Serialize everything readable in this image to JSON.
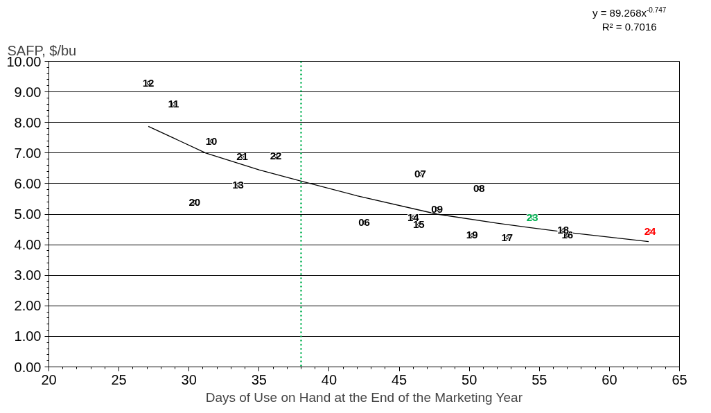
{
  "chart_data": {
    "type": "scatter",
    "xlabel": "Days of Use on Hand at the End of the Marketing Year",
    "ylabel": "SAFP, $/bu",
    "annotations": [
      "y = 89.268x$^{-0.747}$",
      "R² = 0.7016",
      {
        "text": "06",
        "x": 42.5,
        "y": 4.72
      },
      {
        "text": "07",
        "x": 46.5,
        "y": 6.31
      },
      {
        "text": "08",
        "x": 50.7,
        "y": 5.85
      },
      {
        "text": "09",
        "x": 47.7,
        "y": 5.16
      },
      {
        "text": "10",
        "x": 31.6,
        "y": 7.39
      },
      {
        "text": "11",
        "x": 28.9,
        "y": 8.6
      },
      {
        "text": "12",
        "x": 27.1,
        "y": 9.29
      },
      {
        "text": "13",
        "x": 33.5,
        "y": 5.96
      },
      {
        "text": "14",
        "x": 46.0,
        "y": 4.89
      },
      {
        "text": "15",
        "x": 46.4,
        "y": 4.66
      },
      {
        "text": "16",
        "x": 57.0,
        "y": 4.31
      },
      {
        "text": "17",
        "x": 52.7,
        "y": 4.24
      },
      {
        "text": "18",
        "x": 56.7,
        "y": 4.47
      },
      {
        "text": "19",
        "x": 50.2,
        "y": 4.31
      },
      {
        "text": "20",
        "x": 30.4,
        "y": 5.39
      },
      {
        "text": "21",
        "x": 33.8,
        "y": 6.88
      },
      {
        "text": "22",
        "x": 36.2,
        "y": 6.9
      },
      {
        "text": "23",
        "x": 54.5,
        "y": 4.89
      },
      {
        "text": "24",
        "x": 62.9,
        "y": 4.43
      }
    ],
    "xlim": [
      20,
      65
    ],
    "xticks": [
      20,
      25,
      30,
      35,
      40,
      45,
      50,
      55,
      60,
      65
    ],
    "ylim": [
      0,
      10
    ],
    "yticks": [
      {
        "value": 0,
        "label": "0.00"
      },
      {
        "value": 1,
        "label": "1.00"
      },
      {
        "value": 2,
        "label": "2.00"
      },
      {
        "value": 3,
        "label": "3.00"
      },
      {
        "value": 4,
        "label": "4.00"
      },
      {
        "value": 5,
        "label": "5.00"
      },
      {
        "value": 6,
        "label": "6.00"
      },
      {
        "value": 7,
        "label": "7.00"
      },
      {
        "value": 8,
        "label": "8.00"
      },
      {
        "value": 9,
        "label": "9.00"
      },
      {
        "value": 10,
        "label": "10.00"
      }
    ],
    "grid": "y",
    "legend": false,
    "marker": "diamond",
    "ref_lines": [
      {
        "axis": "x",
        "value": 38,
        "label": null,
        "color": "#00b050",
        "line_style": "dotted"
      }
    ],
    "series": [
      {
        "type": "scatter",
        "color": "#000000",
        "x": [
          42.5,
          46.5,
          50.7,
          47.7,
          31.6,
          28.9,
          27.1,
          33.5,
          46.0,
          46.4,
          57.0,
          52.7,
          56.7,
          50.2,
          30.4,
          33.8,
          36.2
        ],
        "values": [
          4.72,
          6.31,
          5.85,
          5.16,
          7.39,
          8.6,
          9.29,
          5.96,
          4.89,
          4.66,
          4.31,
          4.24,
          4.47,
          4.31,
          5.39,
          6.88,
          6.9
        ]
      },
      {
        "type": "scatter",
        "color": "#00b050",
        "x": [
          54.5
        ],
        "values": [
          4.89
        ]
      },
      {
        "type": "scatter",
        "color": "#ff0000",
        "x": [
          62.9
        ],
        "values": [
          4.43
        ]
      },
      {
        "type": "line",
        "color": "#000000",
        "marker": "none",
        "x": [
          27.1,
          31.2,
          35,
          38,
          42,
          47.7,
          52,
          57,
          62.8
        ],
        "values": [
          7.87,
          7.0,
          6.45,
          6.08,
          5.6,
          5.0,
          4.7,
          4.4,
          4.1
        ]
      }
    ]
  }
}
